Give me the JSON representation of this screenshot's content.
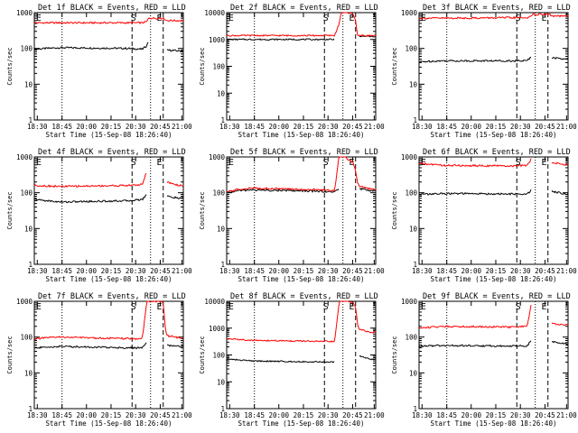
{
  "colors": {
    "events": "#000000",
    "lld": "#ff0000",
    "axis": "#000000"
  },
  "chart_data": [
    {
      "type": "line",
      "title": "Det 1f BLACK = Events, RED = LLD",
      "xlabel": "Start Time (15-Sep-08 18:26:40)",
      "ylabel": "Counts/sec",
      "ylim": [
        1,
        1000
      ],
      "ylog": true,
      "xlim": [
        "18:26:40",
        "21:10"
      ],
      "xticks": [
        "18:30",
        "18:45",
        "20:00",
        "20:15",
        "20:30",
        "20:45",
        "21:00"
      ],
      "yticks": [
        "1",
        "10",
        "100",
        "1000"
      ],
      "markers": [
        "E",
        "S",
        "E"
      ],
      "series": [
        {
          "x": [
            "18:27",
            "18:40",
            "18:55",
            "20:10",
            "20:25",
            "20:30",
            "20:32",
            "20:34",
            "20:45",
            "20:48",
            "20:50",
            "20:52",
            "21:05"
          ],
          "y": [
            95,
            100,
            105,
            100,
            95,
            120,
            170,
            null,
            null,
            null,
            null,
            90,
            85
          ]
        },
        {
          "x": [
            "18:27",
            "18:40",
            "18:55",
            "20:10",
            "20:25",
            "20:30",
            "20:32",
            "20:34",
            "20:45",
            "20:48",
            "20:50",
            "20:52",
            "21:05"
          ],
          "y": [
            520,
            520,
            520,
            520,
            520,
            560,
            700,
            700,
            700,
            700,
            650,
            600,
            600
          ]
        }
      ]
    },
    {
      "type": "line",
      "title": "Det 2f BLACK = Events, RED = LLD",
      "xlabel": "Start Time (15-Sep-08 18:26:40)",
      "ylabel": "Counts/sec",
      "ylim": [
        1,
        10000
      ],
      "ylog": true,
      "xlim": [
        "18:26:40",
        "21:10"
      ],
      "xticks": [
        "18:30",
        "18:45",
        "20:00",
        "20:15",
        "20:30",
        "20:45",
        "21:00"
      ],
      "yticks": [
        "1",
        "10",
        "100",
        "1000",
        "10000"
      ],
      "markers": [
        "E",
        "S",
        "E"
      ],
      "series": [
        {
          "x": [
            "18:27",
            "18:40",
            "18:55",
            "20:10",
            "20:25",
            "20:30",
            "20:32",
            "20:34",
            "20:45",
            "20:48",
            "20:50",
            "20:52",
            "21:05"
          ],
          "y": [
            1000,
            1000,
            1000,
            1000,
            1000,
            null,
            null,
            null,
            null,
            null,
            null,
            1300,
            1300
          ]
        },
        {
          "x": [
            "18:27",
            "18:40",
            "18:55",
            "20:10",
            "20:25",
            "20:30",
            "20:32",
            "20:34",
            "20:45",
            "20:48",
            "20:50",
            "20:52",
            "21:05"
          ],
          "y": [
            1400,
            1400,
            1400,
            1400,
            1400,
            4000,
            9000,
            11000,
            9000,
            5000,
            1500,
            1400,
            1400
          ]
        }
      ]
    },
    {
      "type": "line",
      "title": "Det 3f BLACK = Events, RED = LLD",
      "xlabel": "Start Time (15-Sep-08 18:26:40)",
      "ylabel": "Counts/sec",
      "ylim": [
        1,
        1000
      ],
      "ylog": true,
      "xlim": [
        "18:26:40",
        "21:10"
      ],
      "xticks": [
        "18:30",
        "18:45",
        "20:00",
        "20:15",
        "20:30",
        "20:45",
        "21:00"
      ],
      "yticks": [
        "1",
        "10",
        "100",
        "1000"
      ],
      "markers": [
        "E",
        "S",
        "E"
      ],
      "series": [
        {
          "x": [
            "18:27",
            "18:40",
            "18:55",
            "20:10",
            "20:25",
            "20:30",
            "20:32",
            "20:34",
            "20:45",
            "20:48",
            "20:50",
            "20:52",
            "21:05"
          ],
          "y": [
            42,
            44,
            45,
            45,
            45,
            60,
            null,
            null,
            null,
            null,
            null,
            55,
            50
          ]
        },
        {
          "x": [
            "18:27",
            "18:40",
            "18:55",
            "20:10",
            "20:25",
            "20:30",
            "20:32",
            "20:34",
            "20:45",
            "20:48",
            "20:50",
            "20:52",
            "21:05"
          ],
          "y": [
            700,
            700,
            700,
            720,
            720,
            780,
            900,
            900,
            900,
            900,
            900,
            800,
            800
          ]
        }
      ]
    },
    {
      "type": "line",
      "title": "Det 4f BLACK = Events, RED = LLD",
      "xlabel": "Start Time (15-Sep-08 18:26:40)",
      "ylabel": "Counts/sec",
      "ylim": [
        1,
        1000
      ],
      "ylog": true,
      "xlim": [
        "18:26:40",
        "21:10"
      ],
      "xticks": [
        "18:30",
        "18:45",
        "20:00",
        "20:15",
        "20:30",
        "20:45",
        "21:00"
      ],
      "yticks": [
        "1",
        "10",
        "100",
        "1000"
      ],
      "markers": [
        "E",
        "S",
        "E"
      ],
      "series": [
        {
          "x": [
            "18:27",
            "18:40",
            "18:55",
            "20:10",
            "20:25",
            "20:30",
            "20:32",
            "20:34",
            "20:45",
            "20:48",
            "20:50",
            "20:52",
            "21:05"
          ],
          "y": [
            65,
            60,
            55,
            60,
            65,
            90,
            null,
            null,
            null,
            null,
            null,
            80,
            70
          ]
        },
        {
          "x": [
            "18:27",
            "18:40",
            "18:55",
            "20:10",
            "20:25",
            "20:30",
            "20:32",
            "20:34",
            "20:45",
            "20:48",
            "20:50",
            "20:52",
            "21:05"
          ],
          "y": [
            160,
            155,
            150,
            160,
            170,
            400,
            null,
            null,
            null,
            null,
            null,
            200,
            160
          ]
        }
      ]
    },
    {
      "type": "line",
      "title": "Det 5f BLACK = Events, RED = LLD",
      "xlabel": "Start Time (15-Sep-08 18:26:40)",
      "ylabel": "Counts/sec",
      "ylim": [
        1,
        1000
      ],
      "ylog": true,
      "xlim": [
        "18:26:40",
        "21:10"
      ],
      "xticks": [
        "18:30",
        "18:45",
        "20:00",
        "20:15",
        "20:30",
        "20:45",
        "21:00"
      ],
      "yticks": [
        "1",
        "10",
        "100",
        "1000"
      ],
      "markers": [
        "E",
        "S",
        "E"
      ],
      "series": [
        {
          "x": [
            "18:27",
            "18:40",
            "18:55",
            "20:10",
            "20:25",
            "20:30",
            "20:32",
            "20:34",
            "20:45",
            "20:48",
            "20:50",
            "20:52",
            "21:05"
          ],
          "y": [
            100,
            115,
            120,
            110,
            105,
            130,
            null,
            null,
            null,
            null,
            null,
            130,
            115
          ]
        },
        {
          "x": [
            "18:27",
            "18:40",
            "18:55",
            "20:10",
            "20:25",
            "20:30",
            "20:32",
            "20:34",
            "20:45",
            "20:48",
            "20:50",
            "20:52",
            "21:05"
          ],
          "y": [
            105,
            125,
            135,
            120,
            115,
            1200,
            1200,
            1100,
            700,
            400,
            200,
            150,
            125
          ]
        }
      ]
    },
    {
      "type": "line",
      "title": "Det 6f BLACK = Events, RED = LLD",
      "xlabel": "Start Time (15-Sep-08 18:26:40)",
      "ylabel": "Counts/sec",
      "ylim": [
        1,
        1000
      ],
      "ylog": true,
      "xlim": [
        "18:26:40",
        "21:10"
      ],
      "xticks": [
        "18:30",
        "18:45",
        "20:00",
        "20:15",
        "20:30",
        "20:45",
        "21:00"
      ],
      "yticks": [
        "1",
        "10",
        "100",
        "1000"
      ],
      "markers": [
        "E",
        "S",
        "E"
      ],
      "series": [
        {
          "x": [
            "18:27",
            "18:40",
            "18:55",
            "20:10",
            "20:25",
            "20:30",
            "20:32",
            "20:34",
            "20:45",
            "20:48",
            "20:50",
            "20:52",
            "21:05"
          ],
          "y": [
            90,
            92,
            95,
            92,
            90,
            120,
            null,
            null,
            null,
            null,
            null,
            110,
            95
          ]
        },
        {
          "x": [
            "18:27",
            "18:40",
            "18:55",
            "20:10",
            "20:25",
            "20:30",
            "20:32",
            "20:34",
            "20:45",
            "20:48",
            "20:50",
            "20:52",
            "21:05"
          ],
          "y": [
            650,
            620,
            580,
            560,
            580,
            900,
            null,
            null,
            null,
            null,
            null,
            700,
            620
          ]
        }
      ]
    },
    {
      "type": "line",
      "title": "Det 7f BLACK = Events, RED = LLD",
      "xlabel": "Start Time (15-Sep-08 18:26:40)",
      "ylabel": "Counts/sec",
      "ylim": [
        1,
        1000
      ],
      "ylog": true,
      "xlim": [
        "18:26:40",
        "21:10"
      ],
      "xticks": [
        "18:30",
        "18:45",
        "20:00",
        "20:15",
        "20:30",
        "20:45",
        "21:00"
      ],
      "yticks": [
        "1",
        "10",
        "100",
        "1000"
      ],
      "markers": [
        "E",
        "S",
        "E"
      ],
      "series": [
        {
          "x": [
            "18:27",
            "18:40",
            "18:55",
            "20:10",
            "20:25",
            "20:30",
            "20:32",
            "20:34",
            "20:45",
            "20:48",
            "20:50",
            "20:52",
            "21:05"
          ],
          "y": [
            50,
            52,
            55,
            50,
            50,
            70,
            null,
            null,
            null,
            null,
            null,
            60,
            55
          ]
        },
        {
          "x": [
            "18:27",
            "18:40",
            "18:55",
            "20:10",
            "20:25",
            "20:30",
            "20:32",
            "20:34",
            "20:45",
            "20:48",
            "20:50",
            "20:52",
            "21:05"
          ],
          "y": [
            90,
            95,
            100,
            90,
            90,
            1000,
            1000,
            1000,
            1000,
            900,
            200,
            110,
            95
          ]
        }
      ]
    },
    {
      "type": "line",
      "title": "Det 8f BLACK = Events, RED = LLD",
      "xlabel": "Start Time (15-Sep-08 18:26:40)",
      "ylabel": "Counts/sec",
      "ylim": [
        1,
        10000
      ],
      "ylog": true,
      "xlim": [
        "18:26:40",
        "21:10"
      ],
      "xticks": [
        "18:30",
        "18:45",
        "20:00",
        "20:15",
        "20:30",
        "20:45",
        "21:00"
      ],
      "yticks": [
        "1",
        "10",
        "100",
        "1000",
        "10000"
      ],
      "markers": [
        "E",
        "S",
        "E"
      ],
      "series": [
        {
          "x": [
            "18:27",
            "18:40",
            "18:55",
            "20:10",
            "20:25",
            "20:30",
            "20:32",
            "20:34",
            "20:45",
            "20:48",
            "20:50",
            "20:52",
            "21:05"
          ],
          "y": [
            70,
            65,
            60,
            55,
            55,
            null,
            null,
            null,
            null,
            null,
            null,
            90,
            70
          ]
        },
        {
          "x": [
            "18:27",
            "18:40",
            "18:55",
            "20:10",
            "20:25",
            "20:30",
            "20:32",
            "20:34",
            "20:45",
            "20:48",
            "20:50",
            "20:52",
            "21:05"
          ],
          "y": [
            400,
            380,
            350,
            320,
            320,
            9000,
            11000,
            11000,
            9000,
            6000,
            1500,
            900,
            700
          ]
        }
      ]
    },
    {
      "type": "line",
      "title": "Det 9f BLACK = Events, RED = LLD",
      "xlabel": "Start Time (15-Sep-08 18:26:40)",
      "ylabel": "Counts/sec",
      "ylim": [
        1,
        1000
      ],
      "ylog": true,
      "xlim": [
        "18:26:40",
        "21:10"
      ],
      "xticks": [
        "18:30",
        "18:45",
        "20:00",
        "20:15",
        "20:30",
        "20:45",
        "21:00"
      ],
      "yticks": [
        "1",
        "10",
        "100",
        "1000"
      ],
      "markers": [
        "E",
        "S",
        "E"
      ],
      "series": [
        {
          "x": [
            "18:27",
            "18:40",
            "18:55",
            "20:10",
            "20:25",
            "20:30",
            "20:32",
            "20:34",
            "20:45",
            "20:48",
            "20:50",
            "20:52",
            "21:05"
          ],
          "y": [
            55,
            57,
            58,
            56,
            57,
            80,
            null,
            null,
            null,
            null,
            null,
            75,
            65
          ]
        },
        {
          "x": [
            "18:27",
            "18:40",
            "18:55",
            "20:10",
            "20:25",
            "20:30",
            "20:32",
            "20:34",
            "20:45",
            "20:48",
            "20:50",
            "20:52",
            "21:05"
          ],
          "y": [
            180,
            190,
            200,
            190,
            200,
            900,
            null,
            null,
            null,
            null,
            null,
            240,
            220
          ]
        }
      ]
    }
  ]
}
